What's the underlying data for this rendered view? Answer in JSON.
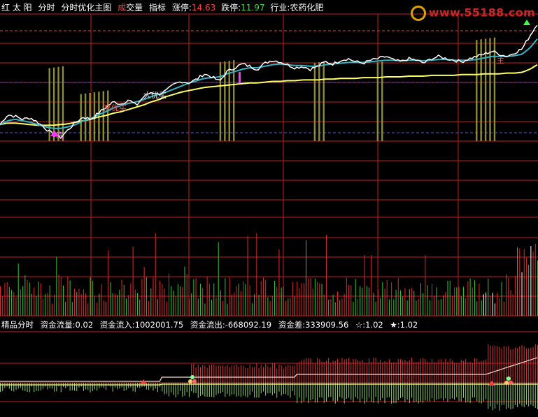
{
  "header": {
    "items": [
      {
        "text": "红 太 阳",
        "color": "#ffffff"
      },
      {
        "text": "分时",
        "color": "#ffffff"
      },
      {
        "text": "分时优化主图",
        "color": "#ffffff"
      }
    ],
    "vol_word_1": "成",
    "vol_word_2": "交量",
    "indicator": "指标",
    "limit_up_label": "涨停:",
    "limit_up_value": "14.63",
    "limit_down_label": "跌停:",
    "limit_down_value": "11.97",
    "industry_label": "行业:",
    "industry_value": "农药化肥"
  },
  "watermark": "www.55188.com",
  "sub_header": {
    "title": "精品分时",
    "flow_label": "资金流量:",
    "flow_value": "0.02",
    "in_label": "资金流入:",
    "in_value": "1002001.75",
    "out_label": "资金流出:",
    "out_value": "-668092.19",
    "diff_label": "资金差:",
    "diff_value": "333909.56",
    "star1_label": "☆:",
    "star1_value": "1.02",
    "star2_label": "★:",
    "star2_value": "1.02"
  },
  "annotations": {
    "buy_big": "大优买",
    "mid_signal": "高优买",
    "low_signal": "底",
    "top_signal": "主"
  },
  "colors": {
    "price": "#ffffff",
    "avg_yellow": "#ffff66",
    "avg_cyan": "#33b5c8",
    "grid_red": "#c81e1e",
    "bar_olive": "#8c8c37",
    "vol_red": "#e02828",
    "vol_green": "#2ec82e",
    "flow_red": "#e03030",
    "flow_green": "#8cd26e"
  },
  "chart_data": {
    "type": "line",
    "price_scale": [
      11.97,
      14.63
    ],
    "price": [
      13.05,
      13.18,
      13.16,
      13.12,
      13.14,
      13.08,
      13.0,
      12.92,
      12.88,
      12.98,
      13.08,
      13.15,
      13.12,
      13.2,
      13.28,
      13.35,
      13.32,
      13.38,
      13.3,
      13.42,
      13.48,
      13.45,
      13.5,
      13.58,
      13.62,
      13.6,
      13.65,
      13.72,
      13.68,
      13.62,
      13.75,
      13.8,
      13.85,
      13.82,
      13.78,
      13.86,
      13.9,
      13.88,
      13.84,
      13.8,
      13.82,
      13.78,
      13.82,
      13.88,
      13.85,
      13.9,
      13.92,
      13.88,
      13.86,
      13.9,
      13.92,
      13.95,
      13.9,
      13.88,
      13.92,
      13.9,
      13.86,
      13.92,
      13.95,
      13.92,
      13.9,
      13.88,
      13.92,
      13.95,
      13.98,
      14.02,
      13.98,
      13.95,
      14.0,
      14.05,
      14.22,
      14.38
    ],
    "avg_yellow": [
      13.05,
      13.07,
      13.07,
      13.06,
      13.05,
      13.04,
      13.04,
      13.04,
      13.05,
      13.06,
      13.08,
      13.1,
      13.12,
      13.15,
      13.17,
      13.2,
      13.22,
      13.25,
      13.28,
      13.31,
      13.35,
      13.38,
      13.42,
      13.45,
      13.48,
      13.5,
      13.52,
      13.54,
      13.55,
      13.56,
      13.57,
      13.58,
      13.59,
      13.6,
      13.6,
      13.61,
      13.62,
      13.62,
      13.63,
      13.63,
      13.64,
      13.64,
      13.64,
      13.65,
      13.65,
      13.66,
      13.66,
      13.66,
      13.67,
      13.67,
      13.67,
      13.68,
      13.68,
      13.68,
      13.69,
      13.69,
      13.69,
      13.7,
      13.7,
      13.7,
      13.7,
      13.71,
      13.71,
      13.71,
      13.72,
      13.72,
      13.72,
      13.73,
      13.73,
      13.74,
      13.78,
      13.84
    ],
    "avg_cyan": [
      13.05,
      13.1,
      13.12,
      13.1,
      13.08,
      13.05,
      13.02,
      13.0,
      13.0,
      13.02,
      13.05,
      13.1,
      13.13,
      13.18,
      13.22,
      13.27,
      13.3,
      13.33,
      13.35,
      13.38,
      13.42,
      13.45,
      13.48,
      13.52,
      13.56,
      13.6,
      13.63,
      13.66,
      13.67,
      13.68,
      13.72,
      13.75,
      13.78,
      13.8,
      13.8,
      13.82,
      13.84,
      13.85,
      13.84,
      13.83,
      13.83,
      13.82,
      13.82,
      13.84,
      13.85,
      13.86,
      13.87,
      13.87,
      13.87,
      13.88,
      13.89,
      13.9,
      13.9,
      13.89,
      13.9,
      13.9,
      13.89,
      13.9,
      13.91,
      13.91,
      13.9,
      13.9,
      13.9,
      13.91,
      13.93,
      13.95,
      13.95,
      13.95,
      13.96,
      13.98,
      14.06,
      14.18
    ],
    "signal_bars": [
      {
        "start": 21,
        "end": 28,
        "top": 13.82
      },
      {
        "start": 36,
        "end": 48,
        "top": 13.5
      },
      {
        "start": 97,
        "end": 104,
        "top": 13.9
      },
      {
        "start": 139,
        "end": 144,
        "top": 13.88
      },
      {
        "start": 167,
        "end": 170,
        "top": 13.88
      },
      {
        "start": 211,
        "end": 220,
        "top": 14.2
      }
    ],
    "volume_scale": [
      0,
      100
    ],
    "volume_seed": 7,
    "flow_baseline": 0
  }
}
